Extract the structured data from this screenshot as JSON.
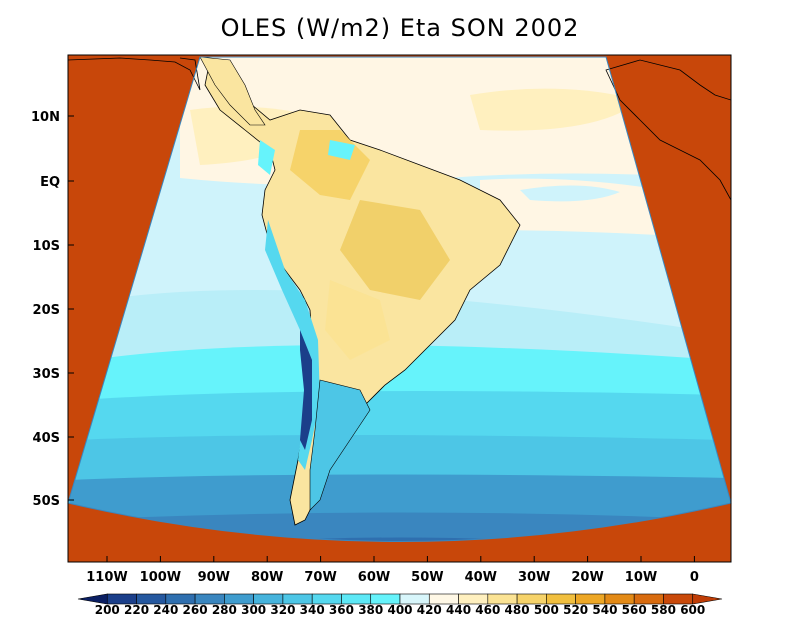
{
  "title": "OLES (W/m2) Eta SON 2002",
  "lat_labels": [
    "10N",
    "EQ",
    "10S",
    "20S",
    "30S",
    "40S",
    "50S"
  ],
  "lon_labels": [
    "110W",
    "100W",
    "90W",
    "80W",
    "70W",
    "60W",
    "50W",
    "40W",
    "30W",
    "20W",
    "10W",
    "0"
  ],
  "colorbar": {
    "labels": [
      "200",
      "220",
      "240",
      "260",
      "280",
      "300",
      "320",
      "340",
      "360",
      "380",
      "400",
      "420",
      "440",
      "460",
      "480",
      "500",
      "520",
      "540",
      "560",
      "580",
      "600"
    ],
    "colors": [
      "#0b1f63",
      "#1b3f8a",
      "#25589f",
      "#2f6faf",
      "#3a86bf",
      "#3f9cce",
      "#46b3dc",
      "#4dc6e6",
      "#55d8ef",
      "#5de8f6",
      "#66f3fb",
      "#d8f6fb",
      "#fff8e6",
      "#fff0bf",
      "#fbe394",
      "#f6d36a",
      "#f1bf3f",
      "#eda726",
      "#e38a16",
      "#d86b0f",
      "#c9490a",
      "#bf3d06"
    ]
  },
  "map_fields": {
    "out_of_domain": "#c8470a"
  }
}
